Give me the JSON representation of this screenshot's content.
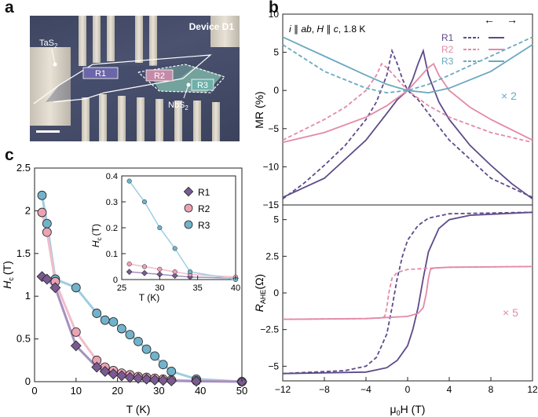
{
  "panels": {
    "a": "a",
    "b": "b",
    "c": "c"
  },
  "micrograph": {
    "device_label": "Device D1",
    "tas2_label": "TaS",
    "tas2_sub": "2",
    "nbs2_label": "NbS",
    "nbs2_sub": "2",
    "regions": [
      "R1",
      "R2",
      "R3"
    ]
  },
  "chart_data": [
    {
      "id": "mr",
      "type": "line",
      "annotation_prefix": "i || ab, H || c, 1.8 K",
      "ylabel": "MR (%)",
      "xlim": [
        -12,
        12
      ],
      "ylim": [
        -15,
        10
      ],
      "yticks": [
        "10",
        "5",
        "0",
        "−5",
        "−10",
        "−15"
      ],
      "scale_note": "× 2",
      "legend": [
        "R1",
        "R2",
        "R3"
      ],
      "colors": {
        "R1": "#5e4a8a",
        "R2": "#e38aa7",
        "R3": "#6aa9c0"
      },
      "series": [
        {
          "name": "R1 up",
          "x": [
            -12,
            -8,
            -4,
            -2,
            -1,
            0,
            0.5,
            1,
            1.5,
            2,
            3,
            4,
            6,
            8,
            10,
            12
          ],
          "y": [
            -14,
            -11.5,
            -6.5,
            -3,
            -1.2,
            0,
            1.5,
            3.5,
            5.2,
            2,
            -1.5,
            -3.8,
            -7.2,
            -9.8,
            -12.2,
            -14.2
          ]
        },
        {
          "name": "R1 down",
          "x": [
            -12,
            -10,
            -8,
            -6,
            -4,
            -3,
            -2,
            -1.5,
            -1,
            -0.5,
            0,
            1,
            2,
            4,
            8,
            12
          ],
          "y": [
            -14.2,
            -12.2,
            -9.8,
            -7.2,
            -3.8,
            -1.5,
            2,
            5.2,
            3.5,
            1.5,
            0,
            -1.2,
            -3,
            -6.5,
            -11.5,
            -14
          ]
        },
        {
          "name": "R2 up",
          "x": [
            -12,
            -8,
            -4,
            -2,
            0,
            1,
            2,
            2.5,
            3,
            4,
            6,
            8,
            12
          ],
          "y": [
            -6.8,
            -5.5,
            -3.5,
            -2,
            0,
            1.5,
            3,
            3.5,
            2,
            0,
            -2.2,
            -3.8,
            -6.5
          ]
        },
        {
          "name": "R2 down",
          "x": [
            -12,
            -8,
            -6,
            -4,
            -3,
            -2.5,
            -2,
            -1,
            0,
            2,
            4,
            8,
            12
          ],
          "y": [
            -6.5,
            -3.8,
            -2.2,
            0,
            2,
            3.5,
            3,
            1.5,
            0,
            -2,
            -3.5,
            -5.5,
            -6.8
          ]
        },
        {
          "name": "R3 up",
          "x": [
            -12,
            -8,
            -4,
            -2,
            0,
            2,
            4,
            8,
            12
          ],
          "y": [
            7,
            4.5,
            2,
            0.8,
            0,
            -0.3,
            0.3,
            2.5,
            6
          ]
        },
        {
          "name": "R3 down",
          "x": [
            -12,
            -8,
            -4,
            -2,
            0,
            2,
            4,
            8,
            12
          ],
          "y": [
            6,
            2.5,
            0.3,
            -0.3,
            0,
            0.8,
            2,
            4.5,
            7
          ]
        }
      ]
    },
    {
      "id": "ahe",
      "type": "line",
      "ylabel": "R",
      "ylabel_sub": "AHE",
      "ylabel_unit": "(Ω)",
      "xlabel": "μ",
      "xlabel_sub": "0",
      "xlabel_unit": "H (T)",
      "xlim": [
        -12,
        12
      ],
      "ylim": [
        -6,
        6
      ],
      "xticks": [
        "−12",
        "−8",
        "−4",
        "0",
        "4",
        "8",
        "12"
      ],
      "yticks": [
        "5",
        "2.5",
        "0",
        "−2.5",
        "−5"
      ],
      "scale_note": "× 5",
      "series": [
        {
          "name": "R1 up",
          "x": [
            -12,
            -4,
            -2,
            -1,
            0,
            0.5,
            1,
            1.5,
            2,
            3,
            4,
            6,
            12
          ],
          "y": [
            -5.5,
            -5.4,
            -5.1,
            -4.6,
            -3.6,
            -2.5,
            -1,
            1,
            2.8,
            4.4,
            5,
            5.3,
            5.5
          ]
        },
        {
          "name": "R1 down",
          "x": [
            -12,
            -6,
            -4,
            -3,
            -2,
            -1.5,
            -1,
            -0.5,
            0,
            1,
            2,
            4,
            12
          ],
          "y": [
            -5.5,
            -5.3,
            -5,
            -4.4,
            -2.8,
            -1,
            1,
            2.5,
            3.6,
            4.6,
            5.1,
            5.4,
            5.5
          ]
        },
        {
          "name": "R2 up",
          "x": [
            -12,
            -4,
            0,
            1,
            1.5,
            1.8,
            2,
            2.2,
            2.5,
            4,
            12
          ],
          "y": [
            -1.8,
            -1.75,
            -1.6,
            -1.4,
            -1,
            0,
            1,
            1.6,
            1.7,
            1.75,
            1.8
          ]
        },
        {
          "name": "R2 down",
          "x": [
            -12,
            -4,
            -2.5,
            -2.2,
            -2,
            -1.8,
            -1.5,
            -1,
            0,
            4,
            12
          ],
          "y": [
            -1.8,
            -1.75,
            -1.7,
            -1.6,
            -1,
            0,
            1,
            1.4,
            1.6,
            1.75,
            1.8
          ]
        }
      ]
    },
    {
      "id": "hc",
      "type": "line",
      "ylabel": "H",
      "ylabel_sub": "c",
      "ylabel_unit": "(T)",
      "xlabel": "T (K)",
      "xlim": [
        0,
        50
      ],
      "ylim": [
        0,
        2.5
      ],
      "xticks": [
        "0",
        "10",
        "20",
        "30",
        "40",
        "50"
      ],
      "yticks": [
        "0",
        "0.5",
        "1",
        "1.5",
        "2",
        "2.5"
      ],
      "legend": [
        "R1",
        "R2",
        "R3"
      ],
      "series": [
        {
          "name": "R1",
          "x": [
            1.8,
            3,
            5,
            10,
            15,
            17,
            19,
            21,
            23,
            25,
            27,
            29,
            31,
            33,
            39,
            50
          ],
          "y": [
            1.23,
            1.2,
            1.1,
            0.42,
            0.17,
            0.12,
            0.09,
            0.07,
            0.05,
            0.04,
            0.03,
            0.02,
            0.015,
            0.01,
            0.005,
            0
          ]
        },
        {
          "name": "R2",
          "x": [
            1.8,
            3,
            5,
            10,
            15,
            17,
            19,
            21,
            23,
            25,
            27,
            29,
            31,
            33,
            39,
            50
          ],
          "y": [
            1.98,
            1.75,
            1.17,
            0.58,
            0.25,
            0.17,
            0.13,
            0.1,
            0.08,
            0.06,
            0.05,
            0.04,
            0.03,
            0.02,
            0.01,
            0
          ]
        },
        {
          "name": "R3",
          "x": [
            1.8,
            3,
            5,
            10,
            15,
            17,
            19,
            21,
            23,
            25,
            27,
            29,
            31,
            33,
            39,
            50
          ],
          "y": [
            2.18,
            1.85,
            1.2,
            1.1,
            0.8,
            0.72,
            0.7,
            0.62,
            0.55,
            0.47,
            0.38,
            0.3,
            0.2,
            0.12,
            0.03,
            0
          ]
        }
      ]
    },
    {
      "id": "hc-inset",
      "type": "line",
      "ylabel": "H",
      "ylabel_sub": "c",
      "ylabel_unit": "(T)",
      "xlabel": "T (K)",
      "xlim": [
        25,
        40
      ],
      "ylim": [
        0,
        0.4
      ],
      "xticks": [
        "25",
        "30",
        "35",
        "40"
      ],
      "yticks": [
        "0",
        "0.1",
        "0.2",
        "0.3",
        "0.4"
      ],
      "series": [
        {
          "name": "R1",
          "x": [
            26,
            28,
            30,
            32,
            34,
            40
          ],
          "y": [
            0.03,
            0.025,
            0.02,
            0.015,
            0.01,
            0.005
          ]
        },
        {
          "name": "R2",
          "x": [
            26,
            28,
            30,
            32,
            34,
            40
          ],
          "y": [
            0.06,
            0.05,
            0.04,
            0.03,
            0.02,
            0.01
          ]
        },
        {
          "name": "R3",
          "x": [
            26,
            28,
            30,
            32,
            34,
            40
          ],
          "y": [
            0.38,
            0.3,
            0.2,
            0.12,
            0.03,
            0
          ]
        }
      ]
    }
  ]
}
